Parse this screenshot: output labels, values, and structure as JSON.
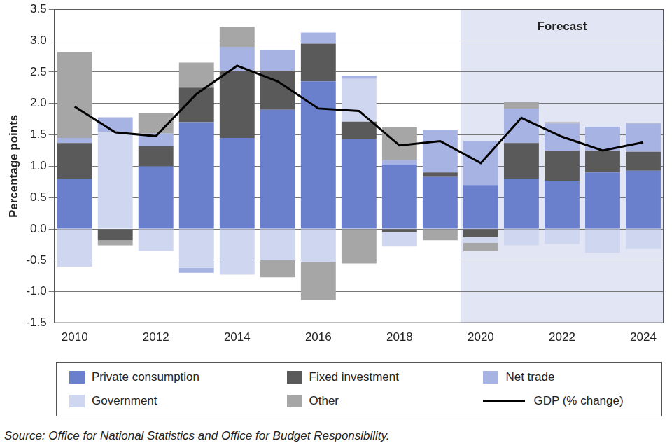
{
  "chart_data": {
    "type": "bar",
    "stacked": true,
    "grid": true,
    "legend": "bottom",
    "y_label": "Percentage points",
    "source": "Source: Office for National Statistics and Office for Budget Responsibility.",
    "annotations": [
      {
        "text": "Forecast",
        "from": "2020",
        "to": "2024"
      }
    ],
    "categories": [
      "2010",
      null,
      "2012",
      null,
      "2014",
      null,
      "2016",
      null,
      "2018",
      null,
      "2020",
      null,
      "2022",
      null,
      "2024"
    ],
    "ylim": [
      -1.5,
      3.5
    ],
    "yticks": [
      {
        "value": -1.5,
        "label": "-1.5"
      },
      {
        "value": -1.0,
        "label": "-1.0"
      },
      {
        "value": -0.5,
        "label": "-0.5"
      },
      {
        "value": 0,
        "label": "0.0"
      },
      {
        "value": 0.5,
        "label": "0.5"
      },
      {
        "value": 1.0,
        "label": "1.0"
      },
      {
        "value": 1.5,
        "label": "1.5"
      },
      {
        "value": 2.0,
        "label": "2.0"
      },
      {
        "value": 2.5,
        "label": "2.5"
      },
      {
        "value": 3.0,
        "label": "3.0"
      },
      {
        "value": 3.5,
        "label": "3.5"
      }
    ],
    "series": [
      {
        "name": "Private consumption",
        "color": "#6a80cc",
        "values": [
          0.8,
          0,
          1.0,
          1.7,
          1.45,
          1.9,
          2.35,
          1.43,
          1.03,
          0.83,
          0.7,
          0.8,
          0.77,
          0.9,
          0.93
        ]
      },
      {
        "name": "Fixed investment",
        "color": "#5a5a5a",
        "values": [
          0.57,
          -0.18,
          0.32,
          0.55,
          1.07,
          0.62,
          0.6,
          0.28,
          -0.05,
          0.07,
          -0.13,
          0.57,
          0.48,
          0.35,
          0.3
        ]
      },
      {
        "name": "Government",
        "color": "#cfd6ef",
        "values": [
          -0.6,
          1.55,
          -0.35,
          -0.62,
          -0.73,
          -0.5,
          -0.53,
          0.68,
          -0.23,
          0,
          -0.09,
          -0.26,
          -0.24,
          -0.38,
          -0.32
        ]
      },
      {
        "name": "Net trade",
        "color": "#a7b3e3",
        "values": [
          0.08,
          0.23,
          0.2,
          -0.08,
          0.38,
          0.33,
          0.18,
          0.05,
          0.07,
          0.68,
          0.7,
          0.55,
          0.43,
          0.38,
          0.45
        ]
      },
      {
        "name": "Other",
        "color": "#a6a6a6",
        "values": [
          1.37,
          -0.08,
          0.33,
          0.4,
          0.32,
          -0.27,
          -0.6,
          -0.55,
          0.52,
          -0.18,
          -0.13,
          0.1,
          0.02,
          0,
          0.01
        ]
      },
      {
        "name": "GDP (% change)",
        "type": "line",
        "color": "#000000",
        "values": [
          1.95,
          1.54,
          1.48,
          2.15,
          2.6,
          2.35,
          1.92,
          1.88,
          1.33,
          1.4,
          1.05,
          1.77,
          1.47,
          1.25,
          1.38
        ]
      }
    ]
  }
}
